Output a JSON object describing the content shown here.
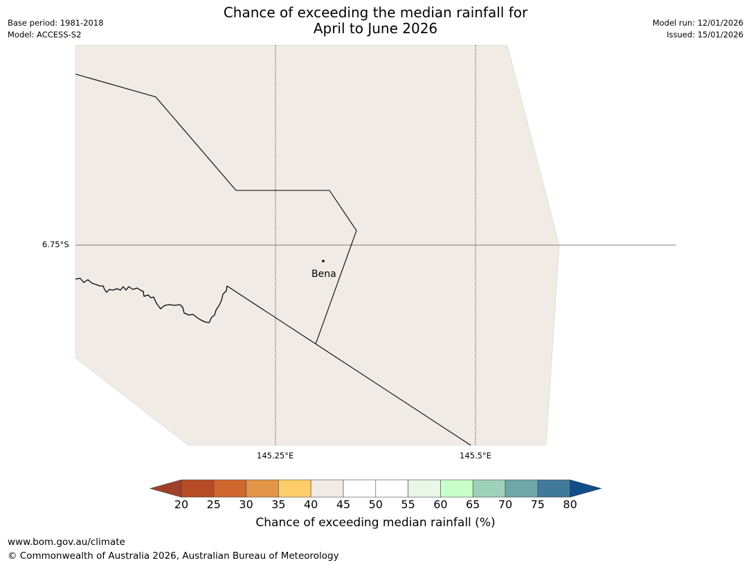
{
  "header": {
    "title_line1": "Chance of exceeding the median rainfall for",
    "title_line2": "April to June 2026",
    "base_period": "Base period: 1981-2018",
    "model": "Model: ACCESS-S2",
    "model_run": "Model run: 12/01/2026",
    "issued": "Issued: 15/01/2026"
  },
  "map": {
    "lat_labels": [
      "6.75°S"
    ],
    "lon_labels": [
      "145.25°E",
      "145.5°E"
    ],
    "place_label": "Bena",
    "land_color": "#f0ebe5",
    "background_color": "#ffffff"
  },
  "colorbar": {
    "ticks": [
      "20",
      "25",
      "30",
      "35",
      "40",
      "45",
      "50",
      "55",
      "60",
      "65",
      "70",
      "75",
      "80"
    ],
    "colors": [
      "#a0402a",
      "#b54c25",
      "#d0672f",
      "#e29545",
      "#ffcd68",
      "#f0ebe5",
      "#ffffff",
      "#ffffff",
      "#e9f6e8",
      "#c9ffc9",
      "#9ed1b9",
      "#6fa6a8",
      "#41799a",
      "#104e8b"
    ],
    "title": "Chance of exceeding median rainfall (%)"
  },
  "footer": {
    "url": "www.bom.gov.au/climate",
    "copyright": "© Commonwealth of Australia 2026, Australian Bureau of Meteorology"
  }
}
